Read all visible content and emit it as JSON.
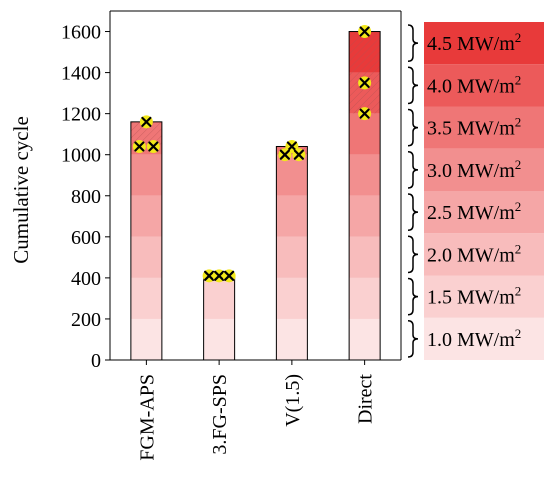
{
  "chart_data": {
    "type": "bar",
    "ylabel": "Cumulative cycle",
    "xlabel": "",
    "ylim": [
      0,
      1700
    ],
    "yticks": [
      0,
      200,
      400,
      600,
      800,
      1000,
      1200,
      1400,
      1600
    ],
    "categories": [
      "FGM-APS",
      "3.FG-SPS",
      "V(1.5)",
      "Direct"
    ],
    "values": [
      1160,
      410,
      1040,
      1600
    ],
    "failure_markers": [
      [
        1160,
        1040,
        1040
      ],
      [
        410,
        410,
        410
      ],
      [
        1040,
        1000,
        1000
      ],
      [
        1600,
        1350,
        1200
      ]
    ],
    "heat_flux_bands": [
      {
        "label": "1.0 MW/m",
        "sup": "2",
        "from": 0,
        "to": 200,
        "color": "#fce4e4"
      },
      {
        "label": "1.5 MW/m",
        "sup": "2",
        "from": 200,
        "to": 400,
        "color": "#fad0d0"
      },
      {
        "label": "2.0 MW/m",
        "sup": "2",
        "from": 400,
        "to": 600,
        "color": "#f8bcbc"
      },
      {
        "label": "2.5 MW/m",
        "sup": "2",
        "from": 600,
        "to": 800,
        "color": "#f5a6a6"
      },
      {
        "label": "3.0 MW/m",
        "sup": "2",
        "from": 800,
        "to": 1000,
        "color": "#f28f8f"
      },
      {
        "label": "3.5 MW/m",
        "sup": "2",
        "from": 1000,
        "to": 1200,
        "color": "#ef7676"
      },
      {
        "label": "4.0 MW/m",
        "sup": "2",
        "from": 1200,
        "to": 1400,
        "color": "#ec5a5a"
      },
      {
        "label": "4.5 MW/m",
        "sup": "2",
        "from": 1400,
        "to": 1600,
        "color": "#e83a3a"
      }
    ],
    "marker_color": "#f2e81a",
    "grid": false
  }
}
